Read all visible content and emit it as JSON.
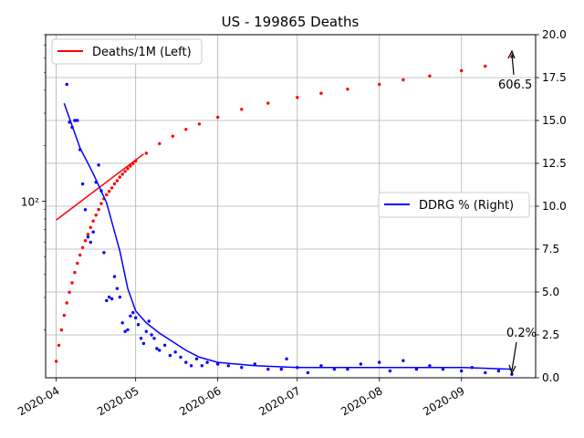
{
  "chart_data": {
    "type": "line",
    "title": "US - 199865 Deaths",
    "x_axis": {
      "type": "date",
      "range": [
        "2020-03-28",
        "2020-09-29"
      ],
      "tick_dates": [
        "2020-04-01",
        "2020-05-01",
        "2020-06-01",
        "2020-07-01",
        "2020-08-01",
        "2020-09-01"
      ],
      "tick_labels": [
        "2020-04",
        "2020-05",
        "2020-06",
        "2020-07",
        "2020-08",
        "2020-09"
      ],
      "grid": true
    },
    "y_left": {
      "scale": "log",
      "range": [
        11,
        800
      ],
      "tick_values": [
        100
      ],
      "tick_labels": [
        "10²"
      ]
    },
    "y_right": {
      "scale": "linear",
      "range": [
        0,
        20
      ],
      "tick_values": [
        0,
        2.5,
        5,
        7.5,
        10,
        12.5,
        15,
        17.5,
        20
      ],
      "tick_labels": [
        "0.0",
        "2.5",
        "5.0",
        "7.5",
        "10.0",
        "12.5",
        "15.0",
        "17.5",
        "20.0"
      ],
      "grid": true
    },
    "legends": [
      {
        "label": "Deaths/1M (Left)",
        "color": "#ff0000",
        "placement": "upper-left"
      },
      {
        "label": "DDRG % (Right)",
        "color": "#0000ff",
        "placement": "center-right"
      }
    ],
    "annotations": [
      {
        "text": "606.5",
        "date": "2020-09-20",
        "value": 606.5,
        "axis": "left"
      },
      {
        "text": "0.2%",
        "date": "2020-09-20",
        "value": 0.2,
        "axis": "right"
      }
    ],
    "series": [
      {
        "name": "Deaths/1M (Left)",
        "axis": "left",
        "color": "#ff0000",
        "style": "points",
        "x": [
          "2020-04-01",
          "2020-04-02",
          "2020-04-03",
          "2020-04-04",
          "2020-04-05",
          "2020-04-06",
          "2020-04-07",
          "2020-04-08",
          "2020-04-09",
          "2020-04-10",
          "2020-04-11",
          "2020-04-12",
          "2020-04-13",
          "2020-04-14",
          "2020-04-15",
          "2020-04-16",
          "2020-04-17",
          "2020-04-18",
          "2020-04-19",
          "2020-04-20",
          "2020-04-21",
          "2020-04-22",
          "2020-04-23",
          "2020-04-24",
          "2020-04-25",
          "2020-04-26",
          "2020-04-27",
          "2020-04-28",
          "2020-04-29",
          "2020-04-30",
          "2020-05-01",
          "2020-05-05",
          "2020-05-10",
          "2020-05-15",
          "2020-05-20",
          "2020-05-25",
          "2020-06-01",
          "2020-06-10",
          "2020-06-20",
          "2020-07-01",
          "2020-07-10",
          "2020-07-20",
          "2020-08-01",
          "2020-08-10",
          "2020-08-20",
          "2020-09-01",
          "2020-09-10",
          "2020-09-20"
        ],
        "y": [
          13.5,
          16.5,
          20,
          24,
          28,
          32,
          36,
          41,
          46,
          51,
          56,
          61,
          66,
          72,
          78,
          84,
          90,
          97,
          103,
          108,
          113,
          118,
          124,
          129,
          135,
          140,
          145,
          150,
          155,
          160,
          165,
          182,
          205,
          225,
          245,
          262,
          285,
          315,
          340,
          365,
          385,
          405,
          430,
          455,
          478,
          510,
          540,
          606.5
        ]
      },
      {
        "name": "Deaths/1M (Left) fit",
        "axis": "left",
        "color": "#ff0000",
        "style": "line",
        "x": [
          "2020-04-01",
          "2020-05-04"
        ],
        "y": [
          79,
          180
        ]
      },
      {
        "name": "DDRG % (Right)",
        "axis": "right",
        "color": "#0000ff",
        "style": "points",
        "x": [
          "2020-04-05",
          "2020-04-06",
          "2020-04-07",
          "2020-04-08",
          "2020-04-09",
          "2020-04-10",
          "2020-04-11",
          "2020-04-12",
          "2020-04-13",
          "2020-04-14",
          "2020-04-15",
          "2020-04-16",
          "2020-04-17",
          "2020-04-18",
          "2020-04-19",
          "2020-04-20",
          "2020-04-21",
          "2020-04-22",
          "2020-04-23",
          "2020-04-24",
          "2020-04-25",
          "2020-04-26",
          "2020-04-27",
          "2020-04-28",
          "2020-04-29",
          "2020-04-30",
          "2020-05-01",
          "2020-05-02",
          "2020-05-03",
          "2020-05-04",
          "2020-05-05",
          "2020-05-06",
          "2020-05-07",
          "2020-05-08",
          "2020-05-09",
          "2020-05-10",
          "2020-05-12",
          "2020-05-14",
          "2020-05-16",
          "2020-05-18",
          "2020-05-20",
          "2020-05-22",
          "2020-05-24",
          "2020-05-26",
          "2020-05-28",
          "2020-06-01",
          "2020-06-05",
          "2020-06-10",
          "2020-06-15",
          "2020-06-20",
          "2020-06-25",
          "2020-06-27",
          "2020-07-01",
          "2020-07-05",
          "2020-07-10",
          "2020-07-15",
          "2020-07-20",
          "2020-07-25",
          "2020-08-01",
          "2020-08-05",
          "2020-08-10",
          "2020-08-15",
          "2020-08-20",
          "2020-08-25",
          "2020-09-01",
          "2020-09-05",
          "2020-09-10",
          "2020-09-15",
          "2020-09-20"
        ],
        "y": [
          17.1,
          14.9,
          14.6,
          15,
          15,
          13.3,
          11.3,
          9.8,
          8.2,
          7.9,
          8.5,
          11.4,
          12.4,
          10.9,
          7.3,
          4.5,
          4.7,
          4.6,
          5.9,
          5.2,
          4.7,
          3.2,
          2.7,
          2.8,
          3.6,
          3.8,
          3.5,
          3.1,
          2.3,
          2.0,
          2.7,
          3.3,
          2.5,
          2.3,
          1.7,
          1.6,
          1.9,
          1.3,
          1.5,
          1.2,
          0.9,
          0.7,
          1.1,
          0.7,
          0.9,
          0.8,
          0.7,
          0.6,
          0.8,
          0.5,
          0.5,
          1.1,
          0.6,
          0.3,
          0.7,
          0.5,
          0.5,
          0.8,
          0.9,
          0.4,
          1.0,
          0.5,
          0.7,
          0.5,
          0.4,
          0.6,
          0.3,
          0.4,
          0.2
        ]
      },
      {
        "name": "DDRG % (Right) trend",
        "axis": "right",
        "color": "#0000ff",
        "style": "line",
        "x": [
          "2020-04-04",
          "2020-04-10",
          "2020-04-15",
          "2020-04-20",
          "2020-04-25",
          "2020-04-28",
          "2020-05-01",
          "2020-05-05",
          "2020-05-10",
          "2020-05-15",
          "2020-05-20",
          "2020-05-25",
          "2020-06-01",
          "2020-06-15",
          "2020-07-01",
          "2020-07-15",
          "2020-08-01",
          "2020-08-15",
          "2020-09-01",
          "2020-09-20"
        ],
        "y": [
          16.0,
          13.4,
          11.9,
          10.2,
          7.4,
          5.2,
          3.9,
          3.2,
          2.6,
          2.1,
          1.6,
          1.2,
          0.9,
          0.7,
          0.6,
          0.6,
          0.6,
          0.6,
          0.6,
          0.5
        ]
      }
    ]
  }
}
